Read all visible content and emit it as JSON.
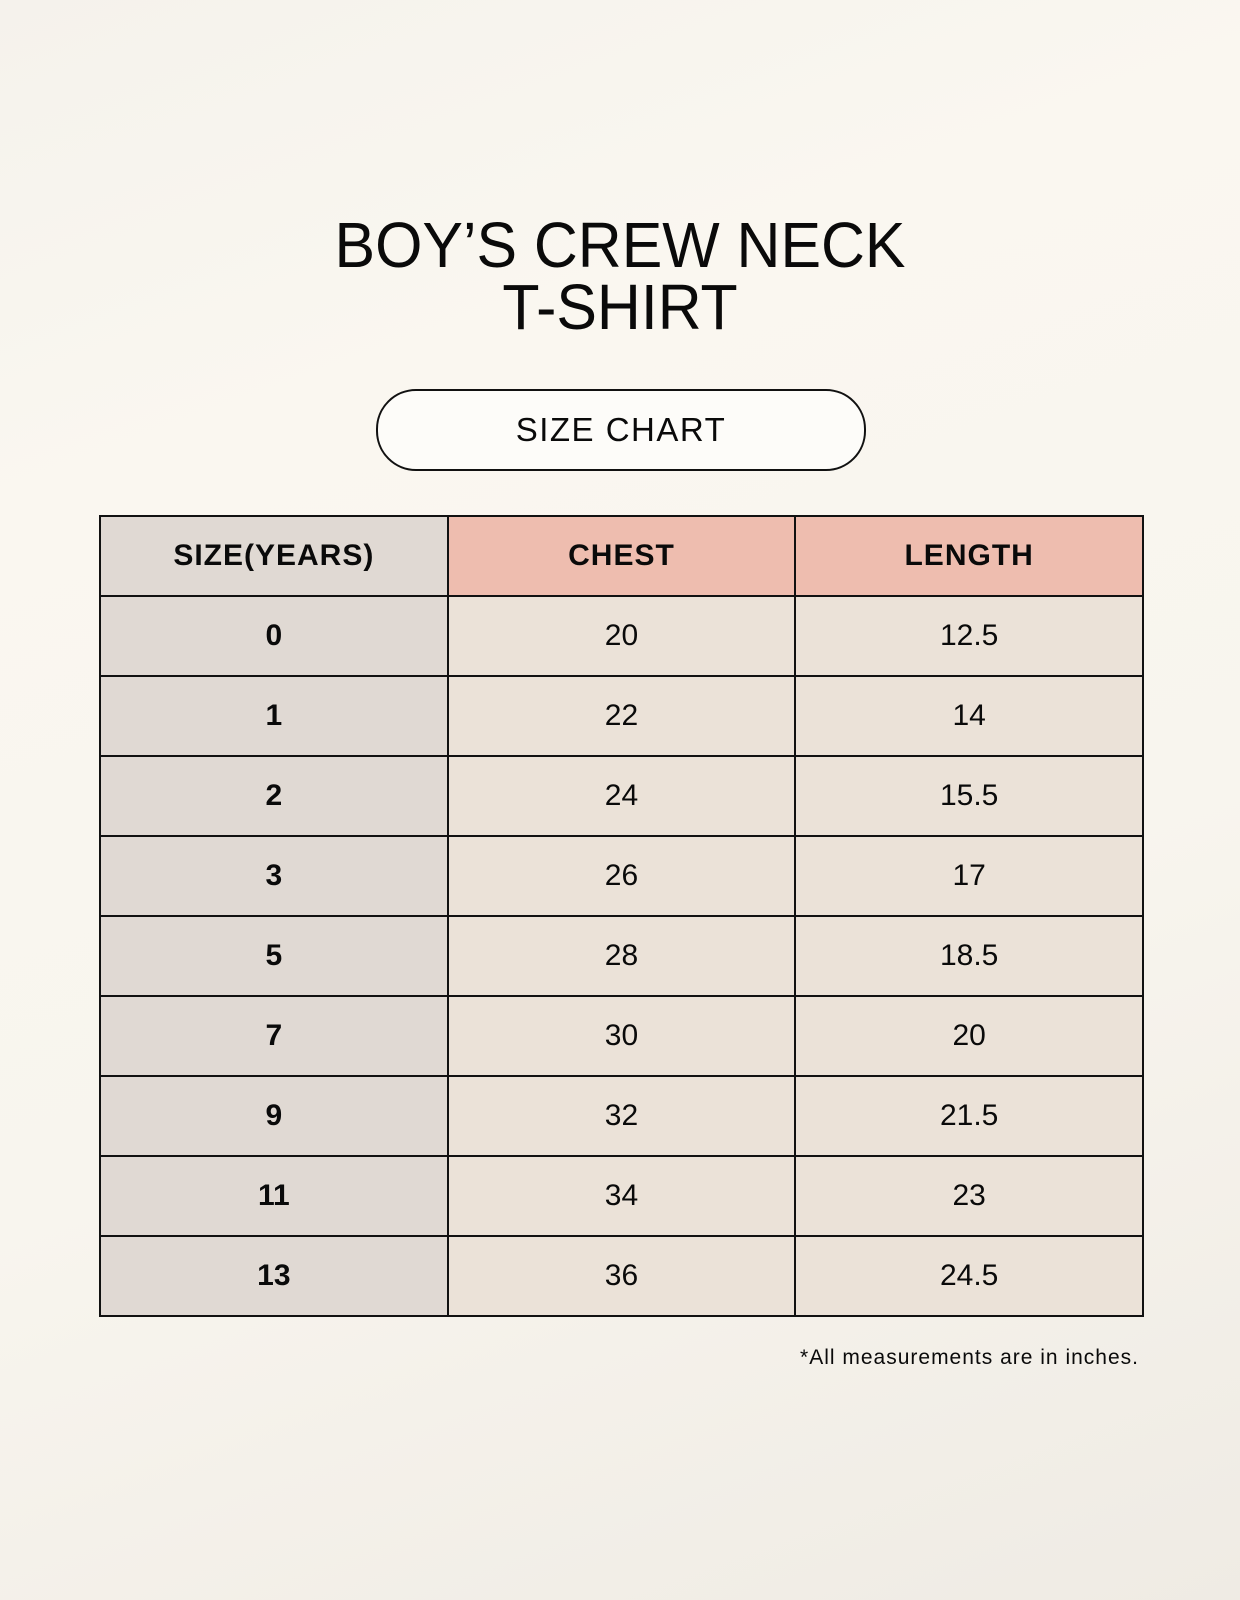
{
  "title": {
    "line1": "BOY’S CREW NECK",
    "line2": "T-SHIRT"
  },
  "subtitle": "SIZE CHART",
  "table": {
    "headers": [
      "SIZE(YEARS)",
      "CHEST",
      "LENGTH"
    ],
    "rows": [
      [
        "0",
        "20",
        "12.5"
      ],
      [
        "1",
        "22",
        "14"
      ],
      [
        "2",
        "24",
        "15.5"
      ],
      [
        "3",
        "26",
        "17"
      ],
      [
        "5",
        "28",
        "18.5"
      ],
      [
        "7",
        "30",
        "20"
      ],
      [
        "9",
        "32",
        "21.5"
      ],
      [
        "11",
        "34",
        "23"
      ],
      [
        "13",
        "36",
        "24.5"
      ]
    ]
  },
  "footnote": "*All measurements are in inches.",
  "colors": {
    "size_column": "#e0d9d3",
    "header_accent": "#eebdaf",
    "cell": "#ebe2d8"
  }
}
